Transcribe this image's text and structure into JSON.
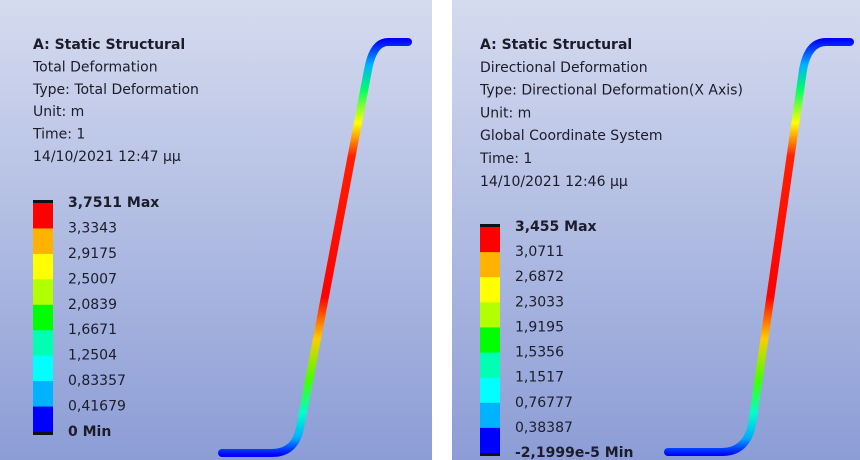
{
  "panels": [
    {
      "title": "A: Static Structural",
      "lines": [
        "Total Deformation",
        "Type: Total Deformation",
        "Unit: m",
        "Time: 1",
        "14/10/2021 12:47 μμ"
      ],
      "legend": [
        "3,7511 Max",
        "3,3343",
        "2,9175",
        "2,5007",
        "2,0839",
        "1,6671",
        "1,2504",
        "0,83357",
        "0,41679",
        "0 Min"
      ]
    },
    {
      "title": "A: Static Structural",
      "lines": [
        "Directional Deformation",
        "Type: Directional Deformation(X Axis)",
        "Unit: m",
        "Global Coordinate System",
        "Time: 1",
        "14/10/2021 12:46 μμ"
      ],
      "legend": [
        "3,455 Max",
        "3,0711",
        "2,6872",
        "2,3033",
        "1,9195",
        "1,5356",
        "1,1517",
        "0,76777",
        "0,38387",
        "-2,1999e-5 Min"
      ]
    }
  ]
}
